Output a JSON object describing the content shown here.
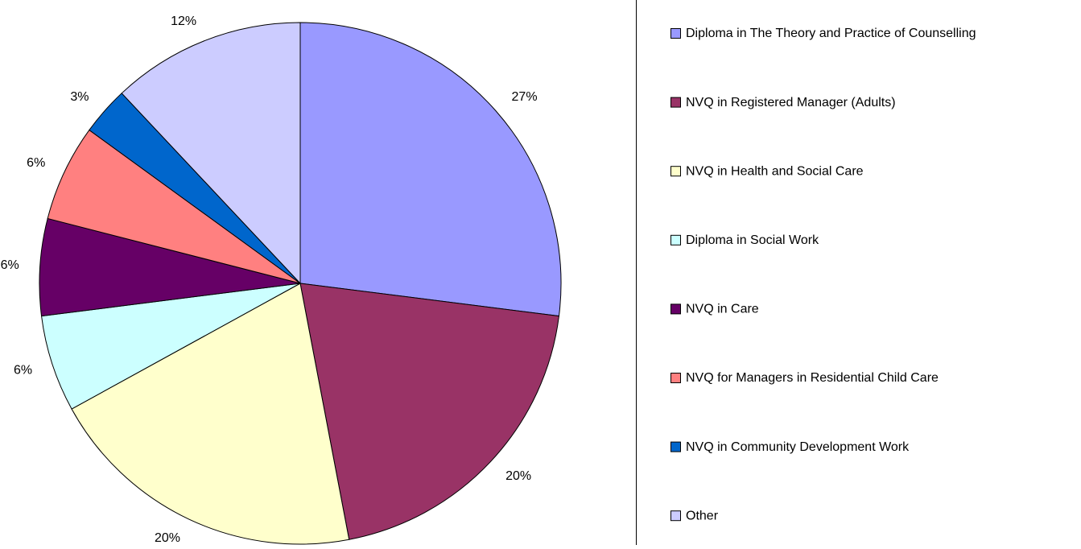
{
  "chart_data": {
    "type": "pie",
    "categories": [
      "Diploma in The Theory and Practice of Counselling",
      "NVQ in Registered Manager (Adults)",
      "NVQ in Health and Social Care",
      "Diploma in Social Work",
      "NVQ in Care",
      "NVQ for Managers in Residential Child Care",
      "NVQ in Community Development Work",
      "Other"
    ],
    "values": [
      27,
      20,
      20,
      6,
      6,
      6,
      3,
      12
    ],
    "value_labels": [
      "27%",
      "20%",
      "20%",
      "6%",
      "6%",
      "6%",
      "3%",
      "12%"
    ],
    "colors": [
      "#9999ff",
      "#993366",
      "#ffffcc",
      "#ccffff",
      "#660066",
      "#ff8080",
      "#0066cc",
      "#ccccff"
    ],
    "legend": "right"
  }
}
